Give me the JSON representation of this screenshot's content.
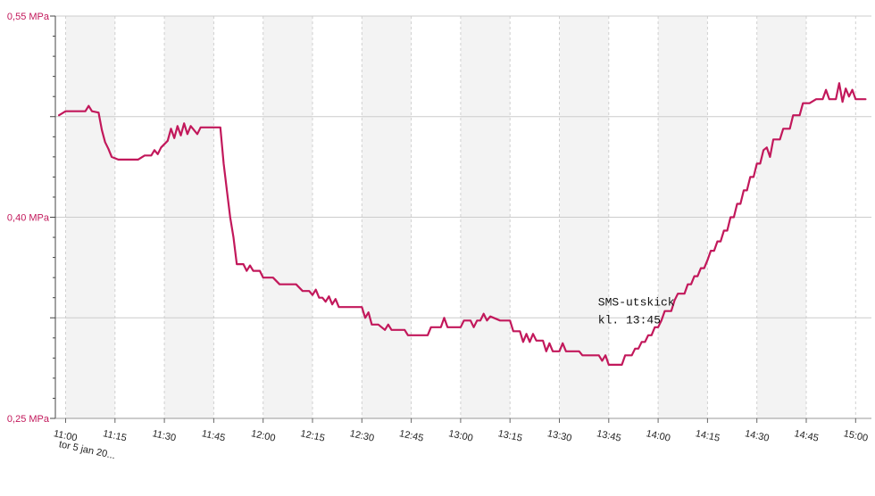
{
  "chart_data": {
    "type": "line",
    "title": "",
    "xlabel": "",
    "ylabel": "",
    "ylim": [
      0.25,
      0.55
    ],
    "grid": true,
    "colors": {
      "line": "#c2185b",
      "axis_label": "#c2185b",
      "band": "#f3f3f3",
      "grid": "#cccccc"
    },
    "y_ticks": [
      {
        "value": 0.55,
        "label": "0,55 MPa"
      },
      {
        "value": 0.4,
        "label": "0,40 MPa"
      },
      {
        "value": 0.25,
        "label": "0,25 MPa"
      }
    ],
    "x_ticks": [
      "11:00",
      "11:15",
      "11:30",
      "11:45",
      "12:00",
      "12:15",
      "12:30",
      "12:45",
      "13:00",
      "13:15",
      "13:30",
      "13:45",
      "14:00",
      "14:15",
      "14:30",
      "14:45",
      "15:00"
    ],
    "date_label": "tor 5 jan 20...",
    "annotation": {
      "line1": "SMS-utskick",
      "line2": "kl. 13:45",
      "x": "13:45",
      "y": 0.325
    },
    "series": [
      {
        "points": [
          [
            "10:58",
            0.476
          ],
          [
            "11:00",
            0.479
          ],
          [
            "11:06",
            0.479
          ],
          [
            "11:07",
            0.483
          ],
          [
            "11:08",
            0.479
          ],
          [
            "11:10",
            0.478
          ],
          [
            "11:11",
            0.465
          ],
          [
            "11:12",
            0.456
          ],
          [
            "11:13",
            0.451
          ],
          [
            "11:14",
            0.445
          ],
          [
            "11:16",
            0.443
          ],
          [
            "11:19",
            0.443
          ],
          [
            "11:22",
            0.443
          ],
          [
            "11:24",
            0.446
          ],
          [
            "11:26",
            0.446
          ],
          [
            "11:27",
            0.45
          ],
          [
            "11:28",
            0.447
          ],
          [
            "11:29",
            0.452
          ],
          [
            "11:31",
            0.457
          ],
          [
            "11:32",
            0.466
          ],
          [
            "11:33",
            0.459
          ],
          [
            "11:34",
            0.468
          ],
          [
            "11:35",
            0.461
          ],
          [
            "11:36",
            0.47
          ],
          [
            "11:37",
            0.462
          ],
          [
            "11:38",
            0.468
          ],
          [
            "11:40",
            0.462
          ],
          [
            "11:41",
            0.467
          ],
          [
            "11:44",
            0.467
          ],
          [
            "11:47",
            0.467
          ],
          [
            "11:48",
            0.44
          ],
          [
            "11:49",
            0.42
          ],
          [
            "11:50",
            0.4
          ],
          [
            "11:51",
            0.385
          ],
          [
            "11:52",
            0.365
          ],
          [
            "11:54",
            0.365
          ],
          [
            "11:55",
            0.36
          ],
          [
            "11:56",
            0.364
          ],
          [
            "11:57",
            0.36
          ],
          [
            "11:59",
            0.36
          ],
          [
            "12:00",
            0.355
          ],
          [
            "12:03",
            0.355
          ],
          [
            "12:05",
            0.35
          ],
          [
            "12:10",
            0.35
          ],
          [
            "12:12",
            0.345
          ],
          [
            "12:14",
            0.345
          ],
          [
            "12:15",
            0.342
          ],
          [
            "12:16",
            0.346
          ],
          [
            "12:17",
            0.34
          ],
          [
            "12:18",
            0.34
          ],
          [
            "12:19",
            0.337
          ],
          [
            "12:20",
            0.341
          ],
          [
            "12:21",
            0.335
          ],
          [
            "12:22",
            0.339
          ],
          [
            "12:23",
            0.333
          ],
          [
            "12:30",
            0.333
          ],
          [
            "12:31",
            0.325
          ],
          [
            "12:32",
            0.329
          ],
          [
            "12:33",
            0.32
          ],
          [
            "12:35",
            0.32
          ],
          [
            "12:37",
            0.316
          ],
          [
            "12:38",
            0.32
          ],
          [
            "12:39",
            0.316
          ],
          [
            "12:43",
            0.316
          ],
          [
            "12:44",
            0.312
          ],
          [
            "12:50",
            0.312
          ],
          [
            "12:51",
            0.318
          ],
          [
            "12:54",
            0.318
          ],
          [
            "12:55",
            0.325
          ],
          [
            "12:56",
            0.318
          ],
          [
            "13:00",
            0.318
          ],
          [
            "13:01",
            0.323
          ],
          [
            "13:03",
            0.323
          ],
          [
            "13:04",
            0.318
          ],
          [
            "13:05",
            0.323
          ],
          [
            "13:06",
            0.323
          ],
          [
            "13:07",
            0.328
          ],
          [
            "13:08",
            0.323
          ],
          [
            "13:09",
            0.326
          ],
          [
            "13:12",
            0.323
          ],
          [
            "13:15",
            0.323
          ],
          [
            "13:16",
            0.315
          ],
          [
            "13:18",
            0.315
          ],
          [
            "13:19",
            0.307
          ],
          [
            "13:20",
            0.313
          ],
          [
            "13:21",
            0.307
          ],
          [
            "13:22",
            0.313
          ],
          [
            "13:23",
            0.308
          ],
          [
            "13:25",
            0.308
          ],
          [
            "13:26",
            0.3
          ],
          [
            "13:27",
            0.306
          ],
          [
            "13:28",
            0.3
          ],
          [
            "13:30",
            0.3
          ],
          [
            "13:31",
            0.306
          ],
          [
            "13:32",
            0.3
          ],
          [
            "13:36",
            0.3
          ],
          [
            "13:37",
            0.297
          ],
          [
            "13:42",
            0.297
          ],
          [
            "13:43",
            0.293
          ],
          [
            "13:44",
            0.297
          ],
          [
            "13:45",
            0.29
          ],
          [
            "13:49",
            0.29
          ],
          [
            "13:50",
            0.297
          ],
          [
            "13:52",
            0.297
          ],
          [
            "13:53",
            0.302
          ],
          [
            "13:54",
            0.302
          ],
          [
            "13:55",
            0.307
          ],
          [
            "13:56",
            0.307
          ],
          [
            "13:57",
            0.312
          ],
          [
            "13:58",
            0.312
          ],
          [
            "13:59",
            0.318
          ],
          [
            "14:00",
            0.318
          ],
          [
            "14:01",
            0.323
          ],
          [
            "14:02",
            0.33
          ],
          [
            "14:04",
            0.33
          ],
          [
            "14:05",
            0.338
          ],
          [
            "14:06",
            0.343
          ],
          [
            "14:08",
            0.343
          ],
          [
            "14:09",
            0.35
          ],
          [
            "14:10",
            0.35
          ],
          [
            "14:11",
            0.356
          ],
          [
            "14:12",
            0.356
          ],
          [
            "14:13",
            0.362
          ],
          [
            "14:14",
            0.362
          ],
          [
            "14:15",
            0.368
          ],
          [
            "14:16",
            0.375
          ],
          [
            "14:17",
            0.375
          ],
          [
            "14:18",
            0.382
          ],
          [
            "14:19",
            0.382
          ],
          [
            "14:20",
            0.39
          ],
          [
            "14:21",
            0.39
          ],
          [
            "14:22",
            0.4
          ],
          [
            "14:23",
            0.4
          ],
          [
            "14:24",
            0.41
          ],
          [
            "14:25",
            0.41
          ],
          [
            "14:26",
            0.42
          ],
          [
            "14:27",
            0.42
          ],
          [
            "14:28",
            0.43
          ],
          [
            "14:29",
            0.43
          ],
          [
            "14:30",
            0.44
          ],
          [
            "14:31",
            0.44
          ],
          [
            "14:32",
            0.45
          ],
          [
            "14:33",
            0.452
          ],
          [
            "14:34",
            0.445
          ],
          [
            "14:35",
            0.458
          ],
          [
            "14:37",
            0.458
          ],
          [
            "14:38",
            0.466
          ],
          [
            "14:40",
            0.466
          ],
          [
            "14:41",
            0.476
          ],
          [
            "14:43",
            0.476
          ],
          [
            "14:44",
            0.485
          ],
          [
            "14:46",
            0.485
          ],
          [
            "14:48",
            0.488
          ],
          [
            "14:50",
            0.488
          ],
          [
            "14:51",
            0.495
          ],
          [
            "14:52",
            0.488
          ],
          [
            "14:54",
            0.488
          ],
          [
            "14:55",
            0.5
          ],
          [
            "14:56",
            0.486
          ],
          [
            "14:57",
            0.496
          ],
          [
            "14:58",
            0.49
          ],
          [
            "14:59",
            0.495
          ],
          [
            "15:00",
            0.488
          ],
          [
            "15:03",
            0.488
          ]
        ]
      }
    ]
  }
}
